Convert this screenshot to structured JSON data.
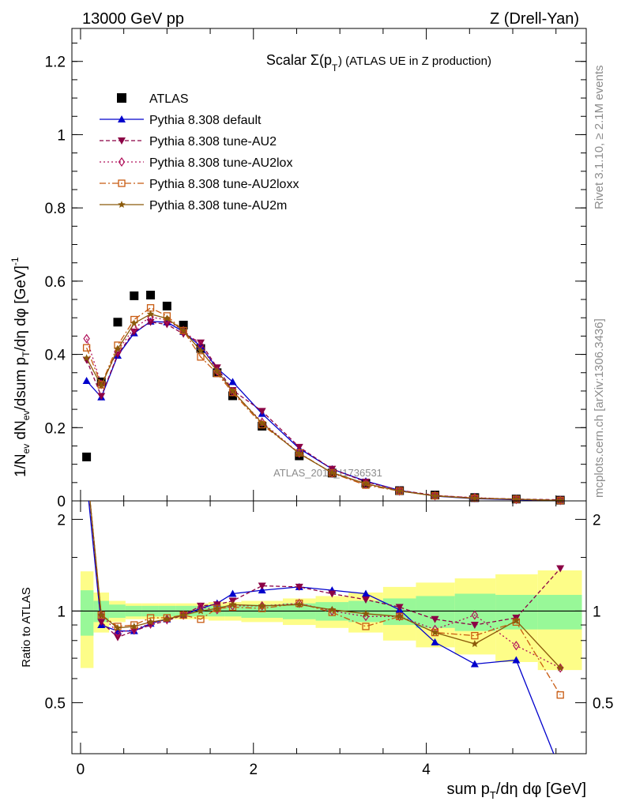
{
  "header": {
    "left": "13000 GeV pp",
    "right": "Z (Drell-Yan)"
  },
  "title": {
    "main": "Scalar Σ(p",
    "sub": "T",
    "tail": ") (ATLAS UE in Z production)"
  },
  "side_labels": {
    "rivet": "Rivet 3.1.10, ≥ 2.1M events",
    "mcplots": "mcplots.cern.ch [arXiv:1306.3436]"
  },
  "watermark": "ATLAS_2019_I1736531",
  "axes": {
    "ylabel_main": "1/N_ev dN_ev/dsum p_T/dη dφ [GeV]^-1",
    "ylabel_ratio": "Ratio to ATLAS",
    "xlabel": "sum p_T/dη dφ [GeV]"
  },
  "legend": {
    "position": "top-left",
    "entries": [
      {
        "label": "ATLAS",
        "color": "#000000",
        "marker": "square-filled",
        "dash": ""
      },
      {
        "label": "Pythia 8.308 default",
        "color": "#0000cc",
        "marker": "triangle-up",
        "dash": ""
      },
      {
        "label": "Pythia 8.308 tune-AU2",
        "color": "#8b0045",
        "marker": "triangle-down",
        "dash": "5,3"
      },
      {
        "label": "Pythia 8.308 tune-AU2lox",
        "color": "#b0105a",
        "marker": "diamond-open",
        "dash": "2,3"
      },
      {
        "label": "Pythia 8.308 tune-AU2loxx",
        "color": "#c85a10",
        "marker": "square-open",
        "dash": "8,3,2,3"
      },
      {
        "label": "Pythia 8.308 tune-AU2m",
        "color": "#8b5a0a",
        "marker": "star",
        "dash": ""
      }
    ]
  },
  "chart_data": [
    {
      "type": "scatter",
      "panel": "main",
      "xlim": [
        -0.1,
        5.85
      ],
      "ylim": [
        0,
        1.29
      ],
      "xticks": [
        0,
        2,
        4
      ],
      "yticks": [
        0,
        0.2,
        0.4,
        0.6,
        0.8,
        1,
        1.2
      ],
      "ytick_labels": [
        "0",
        "0.2",
        "0.4",
        "0.6",
        "0.8",
        "1",
        "1.2"
      ],
      "x": [
        0.07,
        0.24,
        0.43,
        0.62,
        0.81,
        1.0,
        1.19,
        1.39,
        1.58,
        1.76,
        2.1,
        2.53,
        2.91,
        3.3,
        3.69,
        4.1,
        4.56,
        5.04,
        5.55
      ],
      "series": [
        {
          "name": "ATLAS",
          "values": [
            0.12,
            0.325,
            0.488,
            0.56,
            0.562,
            0.532,
            0.48,
            0.416,
            0.35,
            0.287,
            0.204,
            0.123,
            0.076,
            0.048,
            0.028,
            0.016,
            0.009,
            0.005,
            0.002
          ]
        },
        {
          "name": "Pythia 8.308 default",
          "values": [
            0.328,
            0.283,
            0.397,
            0.458,
            0.49,
            0.488,
            0.462,
            0.422,
            0.362,
            0.325,
            0.238,
            0.143,
            0.087,
            0.054,
            0.029,
            0.013,
            0.006,
            0.003,
            0.0005
          ]
        },
        {
          "name": "Pythia 8.308 tune-AU2",
          "values": [
            0.385,
            0.286,
            0.4,
            0.462,
            0.488,
            0.482,
            0.456,
            0.432,
            0.364,
            0.302,
            0.245,
            0.147,
            0.087,
            0.052,
            0.029,
            0.015,
            0.008,
            0.005,
            0.003
          ]
        },
        {
          "name": "Pythia 8.308 tune-AU2lox",
          "values": [
            0.443,
            0.318,
            0.41,
            0.472,
            0.502,
            0.494,
            0.465,
            0.425,
            0.354,
            0.298,
            0.215,
            0.13,
            0.076,
            0.046,
            0.027,
            0.014,
            0.009,
            0.004,
            0.0013
          ]
        },
        {
          "name": "Pythia 8.308 tune-AU2loxx",
          "values": [
            0.418,
            0.317,
            0.425,
            0.495,
            0.527,
            0.505,
            0.465,
            0.393,
            0.348,
            0.296,
            0.208,
            0.131,
            0.076,
            0.043,
            0.027,
            0.014,
            0.0075,
            0.0045,
            0.001
          ]
        },
        {
          "name": "Pythia 8.308 tune-AU2m",
          "values": [
            0.39,
            0.315,
            0.415,
            0.485,
            0.51,
            0.498,
            0.465,
            0.41,
            0.355,
            0.3,
            0.212,
            0.129,
            0.077,
            0.047,
            0.027,
            0.0135,
            0.007,
            0.0045,
            0.0013
          ]
        }
      ]
    },
    {
      "type": "line",
      "panel": "ratio",
      "xlim": [
        -0.1,
        5.85
      ],
      "ylim": [
        0.34,
        2.3
      ],
      "ylog": true,
      "yticks": [
        0.5,
        1,
        2
      ],
      "ytick_labels": [
        "0.5",
        "1",
        "2"
      ],
      "xticks": [
        0,
        2,
        4
      ],
      "xtick_labels": [
        "0",
        "2",
        "4"
      ],
      "bin_edges": [
        0,
        0.15,
        0.33,
        0.52,
        0.71,
        0.9,
        1.1,
        1.29,
        1.48,
        1.67,
        1.86,
        2.34,
        2.72,
        3.1,
        3.5,
        3.88,
        4.33,
        4.8,
        5.29,
        5.8
      ],
      "band_green": [
        0.17,
        0.08,
        0.05,
        0.04,
        0.04,
        0.04,
        0.04,
        0.04,
        0.04,
        0.04,
        0.05,
        0.06,
        0.07,
        0.08,
        0.1,
        0.12,
        0.14,
        0.13,
        0.13
      ],
      "band_yellow": [
        0.35,
        0.15,
        0.08,
        0.06,
        0.06,
        0.06,
        0.06,
        0.06,
        0.07,
        0.07,
        0.08,
        0.1,
        0.12,
        0.15,
        0.2,
        0.24,
        0.28,
        0.32,
        0.36
      ],
      "x": [
        0.07,
        0.24,
        0.43,
        0.62,
        0.81,
        1.0,
        1.19,
        1.39,
        1.58,
        1.76,
        2.1,
        2.53,
        2.91,
        3.3,
        3.69,
        4.1,
        4.56,
        5.04,
        5.55
      ],
      "series": [
        {
          "name": "Pythia 8.308 default",
          "values": [
            2.7,
            0.9,
            0.86,
            0.86,
            0.91,
            0.94,
            0.97,
            1.02,
            1.06,
            1.14,
            1.17,
            1.2,
            1.17,
            1.14,
            1.01,
            0.79,
            0.67,
            0.69,
            0.3
          ]
        },
        {
          "name": "Pythia 8.308 tune-AU2",
          "values": [
            3.0,
            0.92,
            0.82,
            0.86,
            0.9,
            0.93,
            0.97,
            1.04,
            1.05,
            1.08,
            1.21,
            1.2,
            1.14,
            1.09,
            1.03,
            0.94,
            0.9,
            0.95,
            1.38
          ]
        },
        {
          "name": "Pythia 8.308 tune-AU2lox",
          "values": [
            3.0,
            0.97,
            0.85,
            0.87,
            0.91,
            0.94,
            0.97,
            1.03,
            1.01,
            1.04,
            1.04,
            1.06,
            1.0,
            0.96,
            0.96,
            0.87,
            0.97,
            0.77,
            0.65
          ]
        },
        {
          "name": "Pythia 8.308 tune-AU2loxx",
          "values": [
            3.0,
            0.97,
            0.89,
            0.9,
            0.95,
            0.95,
            0.97,
            0.94,
            1.02,
            1.03,
            1.02,
            1.06,
            0.99,
            0.89,
            0.96,
            0.85,
            0.83,
            0.92,
            0.53
          ]
        },
        {
          "name": "Pythia 8.308 tune-AU2m",
          "values": [
            3.0,
            0.97,
            0.88,
            0.89,
            0.92,
            0.94,
            0.97,
            1.0,
            1.02,
            1.05,
            1.04,
            1.05,
            1.01,
            0.98,
            0.96,
            0.85,
            0.78,
            0.93,
            0.65
          ]
        }
      ]
    }
  ]
}
